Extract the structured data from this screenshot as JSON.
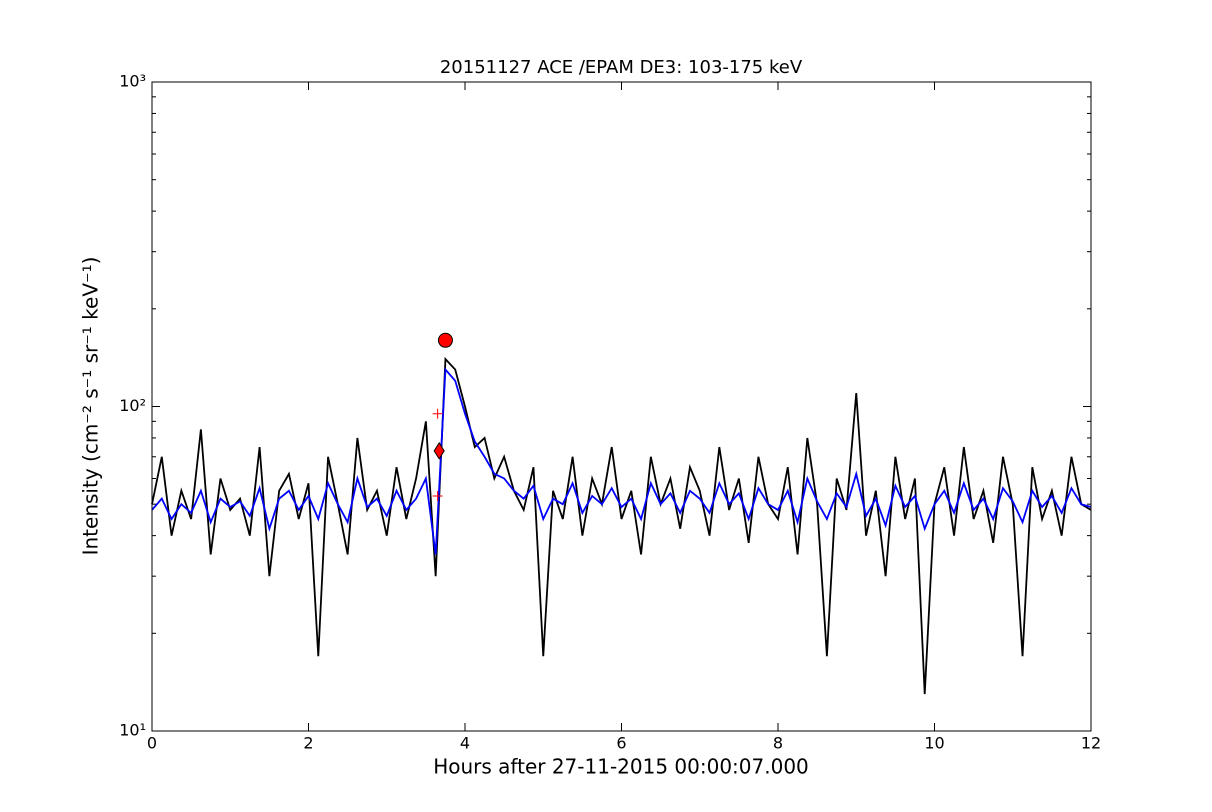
{
  "chart_data": {
    "type": "line",
    "title": "20151127 ACE /EPAM DE3: 103-175 keV",
    "xlabel": "Hours after 27-11-2015 00:00:07.000",
    "ylabel": "Intensity (cm⁻² s⁻¹ sr⁻¹ keV⁻¹)",
    "log_y": true,
    "xlim": [
      0,
      12
    ],
    "xticks": [
      0,
      2,
      4,
      6,
      8,
      10,
      12
    ],
    "ylim": [
      10,
      1000
    ],
    "yticks": [
      {
        "value": 10,
        "label": "10¹"
      },
      {
        "value": 100,
        "label": "10²"
      },
      {
        "value": 1000,
        "label": "10³"
      }
    ],
    "yminorticks": [
      20,
      30,
      40,
      50,
      60,
      70,
      80,
      90,
      200,
      300,
      400,
      500,
      600,
      700,
      800,
      900
    ],
    "x": [
      0,
      0.125,
      0.25,
      0.375,
      0.5,
      0.625,
      0.75,
      0.875,
      1,
      1.125,
      1.25,
      1.375,
      1.5,
      1.625,
      1.75,
      1.875,
      2,
      2.125,
      2.25,
      2.375,
      2.5,
      2.625,
      2.75,
      2.875,
      3,
      3.125,
      3.25,
      3.375,
      3.5,
      3.625,
      3.75,
      3.875,
      4,
      4.125,
      4.25,
      4.375,
      4.5,
      4.625,
      4.75,
      4.875,
      5,
      5.125,
      5.25,
      5.375,
      5.5,
      5.625,
      5.75,
      5.875,
      6,
      6.125,
      6.25,
      6.375,
      6.5,
      6.625,
      6.75,
      6.875,
      7,
      7.125,
      7.25,
      7.375,
      7.5,
      7.625,
      7.75,
      7.875,
      8,
      8.125,
      8.25,
      8.375,
      8.5,
      8.625,
      8.75,
      8.875,
      9,
      9.125,
      9.25,
      9.375,
      9.5,
      9.625,
      9.75,
      9.875,
      10,
      10.125,
      10.25,
      10.375,
      10.5,
      10.625,
      10.75,
      10.875,
      11,
      11.125,
      11.25,
      11.375,
      11.5,
      11.625,
      11.75,
      11.875,
      12
    ],
    "series": [
      {
        "color": "#000000",
        "values": [
          50,
          70,
          40,
          55,
          45,
          85,
          35,
          60,
          48,
          52,
          40,
          75,
          30,
          55,
          62,
          45,
          58,
          17,
          70,
          50,
          35,
          80,
          48,
          55,
          40,
          65,
          45,
          60,
          90,
          30,
          140,
          130,
          100,
          75,
          80,
          60,
          70,
          55,
          48,
          65,
          17,
          55,
          45,
          70,
          40,
          60,
          50,
          75,
          45,
          55,
          35,
          70,
          50,
          60,
          42,
          65,
          55,
          40,
          75,
          48,
          60,
          38,
          70,
          50,
          45,
          65,
          35,
          80,
          50,
          17,
          60,
          48,
          110,
          40,
          55,
          30,
          70,
          45,
          60,
          13,
          50,
          65,
          40,
          75,
          45,
          55,
          38,
          70,
          50,
          17,
          65,
          45,
          55,
          40,
          70,
          50,
          48
        ]
      },
      {
        "color": "#0000ff",
        "values": [
          48,
          52,
          45,
          50,
          47,
          55,
          44,
          52,
          49,
          51,
          46,
          56,
          42,
          52,
          55,
          48,
          53,
          45,
          58,
          50,
          44,
          60,
          49,
          52,
          46,
          55,
          48,
          52,
          60,
          35,
          130,
          120,
          95,
          78,
          70,
          62,
          60,
          55,
          52,
          57,
          45,
          52,
          50,
          58,
          47,
          53,
          50,
          56,
          49,
          52,
          45,
          58,
          50,
          54,
          47,
          55,
          52,
          47,
          58,
          50,
          54,
          45,
          56,
          50,
          48,
          55,
          44,
          60,
          51,
          45,
          54,
          49,
          62,
          46,
          52,
          43,
          57,
          49,
          53,
          42,
          50,
          55,
          47,
          58,
          48,
          52,
          45,
          56,
          51,
          44,
          55,
          49,
          53,
          47,
          56,
          50,
          49
        ]
      }
    ],
    "markers": [
      {
        "shape": "circle",
        "color": "#ff0000",
        "x": 3.75,
        "y": 160
      },
      {
        "shape": "diamond",
        "color": "#ff0000",
        "x": 3.67,
        "y": 73
      },
      {
        "shape": "plus",
        "color": "#ff0000",
        "x": 3.65,
        "y": 95
      },
      {
        "shape": "plus",
        "color": "#ff0000",
        "x": 3.65,
        "y": 53
      }
    ]
  }
}
